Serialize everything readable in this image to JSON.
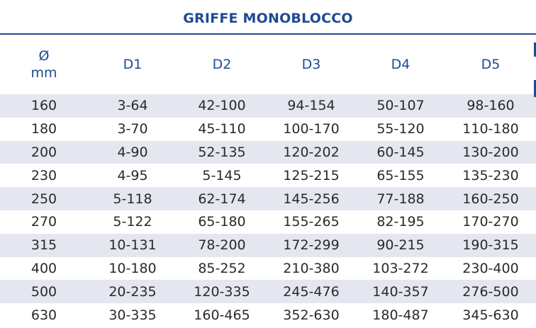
{
  "title": "GRIFFE MONOBLOCCO",
  "header": {
    "diameter_symbol": "Ø",
    "diameter_unit": "mm",
    "columns": [
      "D1",
      "D2",
      "D3",
      "D4",
      "D5"
    ]
  },
  "rows": [
    {
      "d": "160",
      "v": [
        "3-64",
        "42-100",
        "94-154",
        "50-107",
        "98-160"
      ]
    },
    {
      "d": "180",
      "v": [
        "3-70",
        "45-110",
        "100-170",
        "55-120",
        "110-180"
      ]
    },
    {
      "d": "200",
      "v": [
        "4-90",
        "52-135",
        "120-202",
        "60-145",
        "130-200"
      ]
    },
    {
      "d": "230",
      "v": [
        "4-95",
        "5-145",
        "125-215",
        "65-155",
        "135-230"
      ]
    },
    {
      "d": "250",
      "v": [
        "5-118",
        "62-174",
        "145-256",
        "77-188",
        "160-250"
      ]
    },
    {
      "d": "270",
      "v": [
        "5-122",
        "65-180",
        "155-265",
        "82-195",
        "170-270"
      ]
    },
    {
      "d": "315",
      "v": [
        "10-131",
        "78-200",
        "172-299",
        "90-215",
        "190-315"
      ]
    },
    {
      "d": "400",
      "v": [
        "10-180",
        "85-252",
        "210-380",
        "103-272",
        "230-400"
      ]
    },
    {
      "d": "500",
      "v": [
        "20-235",
        "120-335",
        "245-476",
        "140-357",
        "276-500"
      ]
    },
    {
      "d": "630",
      "v": [
        "30-335",
        "160-465",
        "352-630",
        "180-487",
        "345-630"
      ]
    }
  ],
  "colors": {
    "accent": "#1e4a93",
    "stripe": "#e4e6f0",
    "text": "#2a2a2a"
  }
}
